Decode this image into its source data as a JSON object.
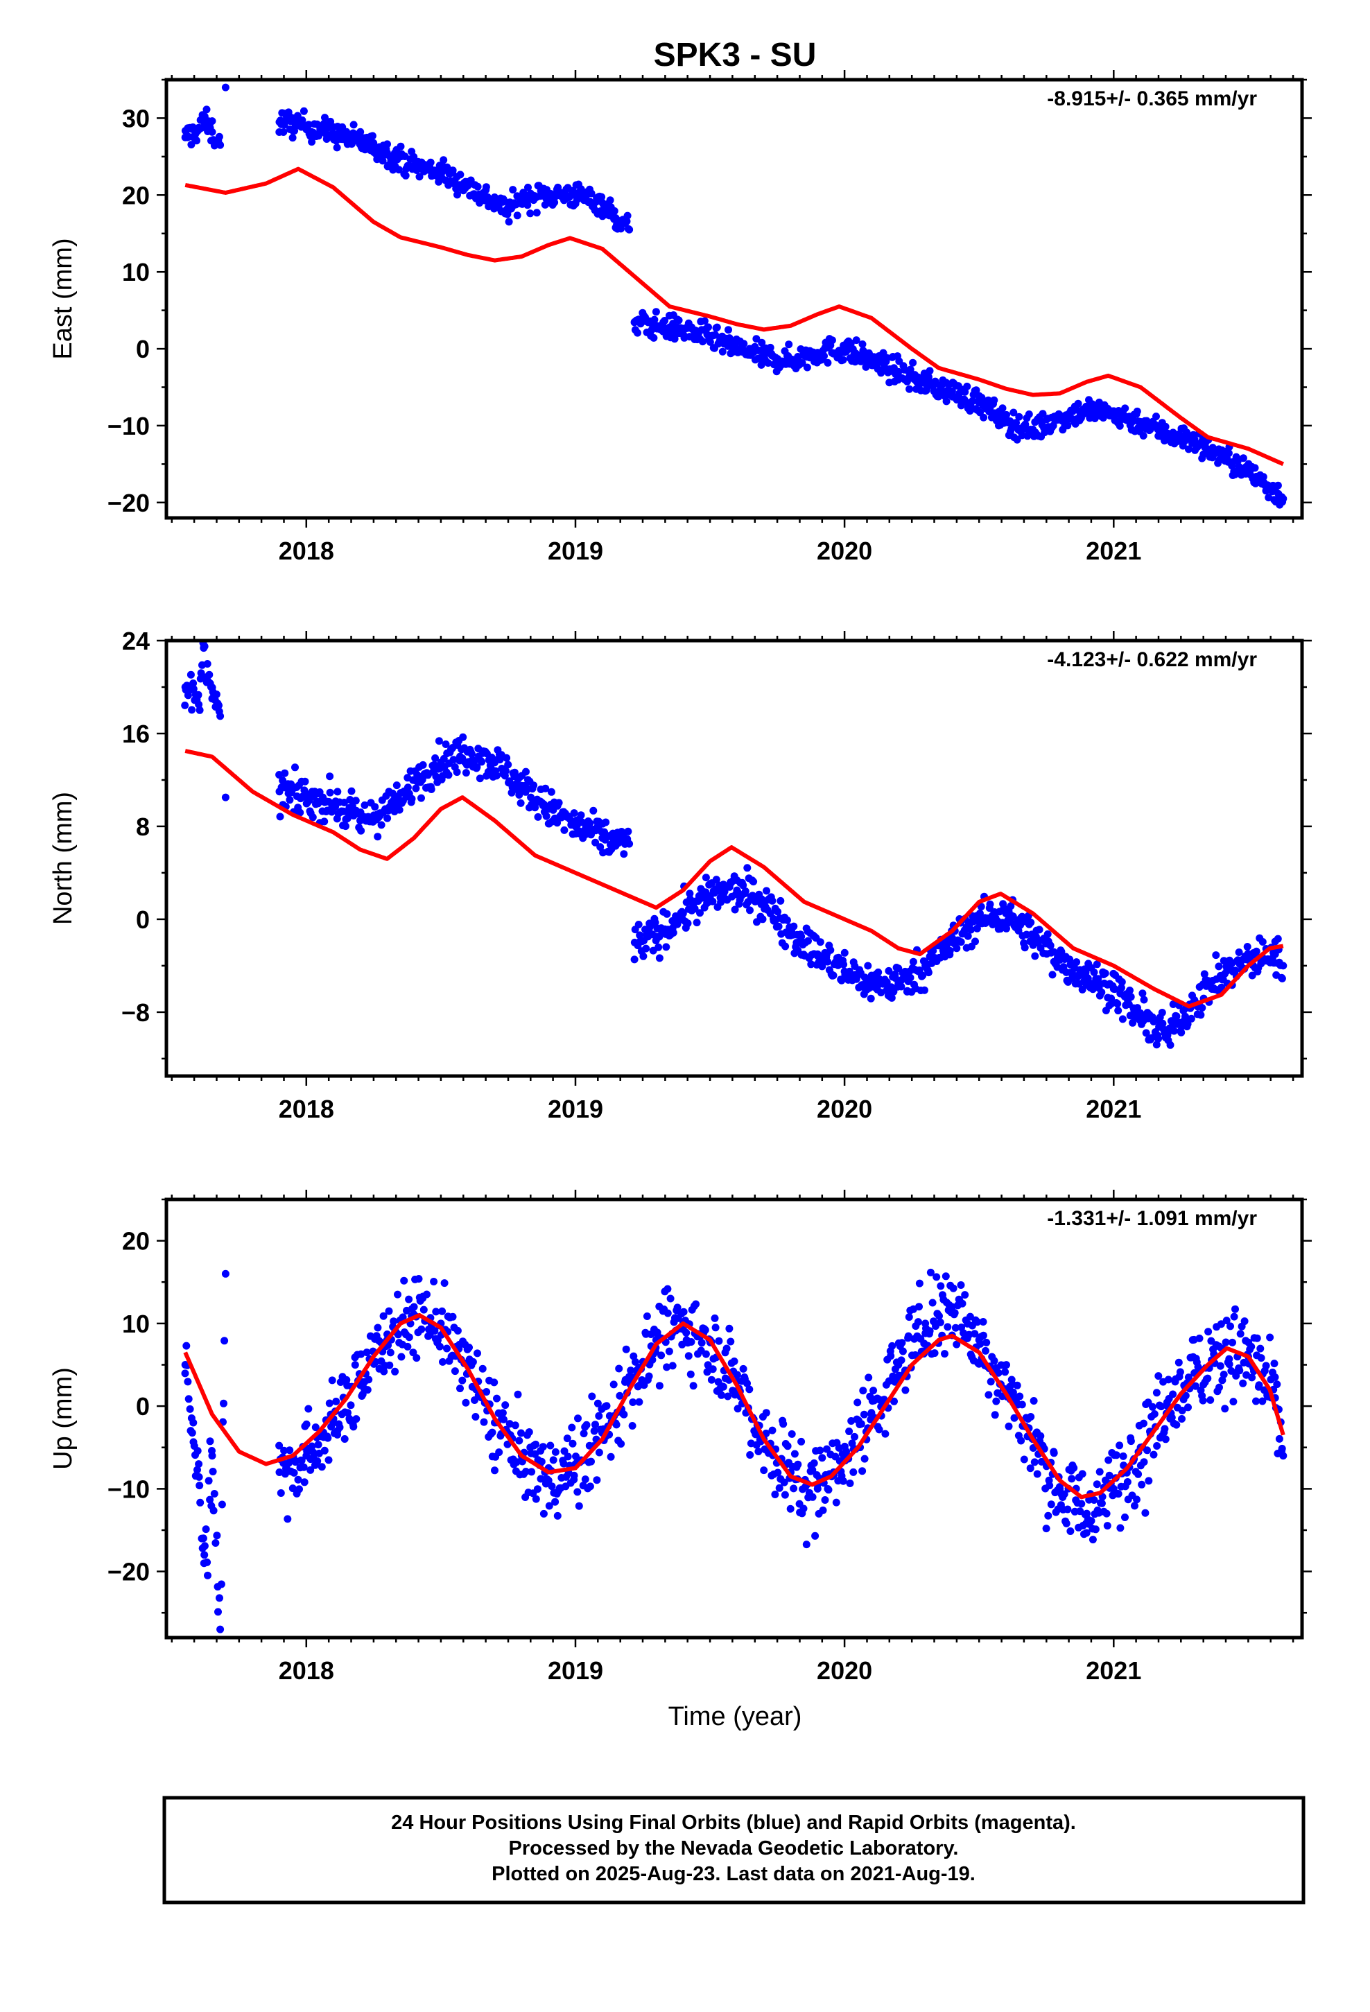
{
  "title": "SPK3 - SU",
  "xlabel": "Time (year)",
  "footer": {
    "line1": "24 Hour Positions Using Final Orbits (blue) and Rapid Orbits (magenta).",
    "line2": "Processed by the Nevada Geodetic Laboratory.",
    "line3": "Plotted on 2025-Aug-23. Last data on 2021-Aug-19."
  },
  "colors": {
    "data": "#0000ff",
    "model": "#ff0000",
    "frame": "#000000"
  },
  "chart_data": [
    {
      "type": "scatter",
      "ylabel": "East (mm)",
      "rate_text": "-8.915+/- 0.365 mm/yr",
      "xlim": [
        2017.48,
        2021.7
      ],
      "ylim": [
        -22,
        35
      ],
      "xticks": [
        2018,
        2019,
        2020,
        2021
      ],
      "yticks": [
        -20,
        -10,
        0,
        10,
        20,
        30
      ],
      "data_points": [
        [
          2017.55,
          27.5
        ],
        [
          2017.6,
          28.5
        ],
        [
          2017.62,
          29.8
        ],
        [
          2017.65,
          28.2
        ],
        [
          2017.68,
          26.5
        ],
        [
          2017.7,
          34.0
        ],
        [
          2017.9,
          29.5
        ],
        [
          2018.0,
          29.0
        ],
        [
          2018.1,
          28.0
        ],
        [
          2018.2,
          27.0
        ],
        [
          2018.3,
          25.5
        ],
        [
          2018.4,
          23.8
        ],
        [
          2018.5,
          23.0
        ],
        [
          2018.6,
          21.2
        ],
        [
          2018.7,
          19.0
        ],
        [
          2018.75,
          18.0
        ],
        [
          2018.8,
          19.5
        ],
        [
          2018.9,
          20.0
        ],
        [
          2019.0,
          20.0
        ],
        [
          2019.1,
          19.0
        ],
        [
          2019.15,
          17.0
        ],
        [
          2019.2,
          15.5
        ],
        [
          2019.22,
          3.5
        ],
        [
          2019.3,
          3.0
        ],
        [
          2019.4,
          2.5
        ],
        [
          2019.5,
          1.5
        ],
        [
          2019.6,
          0.0
        ],
        [
          2019.7,
          -1.0
        ],
        [
          2019.8,
          -1.5
        ],
        [
          2019.9,
          -0.5
        ],
        [
          2020.0,
          0.0
        ],
        [
          2020.1,
          -1.5
        ],
        [
          2020.2,
          -3.0
        ],
        [
          2020.3,
          -4.5
        ],
        [
          2020.4,
          -5.5
        ],
        [
          2020.5,
          -7.0
        ],
        [
          2020.6,
          -9.5
        ],
        [
          2020.7,
          -10.5
        ],
        [
          2020.8,
          -9.0
        ],
        [
          2020.9,
          -8.0
        ],
        [
          2021.0,
          -8.5
        ],
        [
          2021.1,
          -9.5
        ],
        [
          2021.2,
          -11.0
        ],
        [
          2021.3,
          -12.0
        ],
        [
          2021.4,
          -14.0
        ],
        [
          2021.5,
          -16.0
        ],
        [
          2021.6,
          -18.5
        ],
        [
          2021.63,
          -19.5
        ]
      ],
      "model_curve": [
        [
          2017.55,
          21.3
        ],
        [
          2017.7,
          20.3
        ],
        [
          2017.85,
          21.5
        ],
        [
          2017.97,
          23.4
        ],
        [
          2018.1,
          21.0
        ],
        [
          2018.25,
          16.5
        ],
        [
          2018.35,
          14.5
        ],
        [
          2018.5,
          13.2
        ],
        [
          2018.6,
          12.2
        ],
        [
          2018.7,
          11.5
        ],
        [
          2018.8,
          12.0
        ],
        [
          2018.9,
          13.5
        ],
        [
          2018.98,
          14.4
        ],
        [
          2019.1,
          13.0
        ],
        [
          2019.25,
          8.5
        ],
        [
          2019.35,
          5.5
        ],
        [
          2019.5,
          4.2
        ],
        [
          2019.6,
          3.2
        ],
        [
          2019.7,
          2.5
        ],
        [
          2019.8,
          3.0
        ],
        [
          2019.9,
          4.5
        ],
        [
          2019.98,
          5.5
        ],
        [
          2020.1,
          4.0
        ],
        [
          2020.25,
          0.0
        ],
        [
          2020.35,
          -2.5
        ],
        [
          2020.5,
          -4.0
        ],
        [
          2020.6,
          -5.2
        ],
        [
          2020.7,
          -6.0
        ],
        [
          2020.8,
          -5.8
        ],
        [
          2020.9,
          -4.3
        ],
        [
          2020.98,
          -3.5
        ],
        [
          2021.1,
          -5.0
        ],
        [
          2021.25,
          -9.0
        ],
        [
          2021.35,
          -11.5
        ],
        [
          2021.5,
          -13.0
        ],
        [
          2021.63,
          -15.0
        ]
      ]
    },
    {
      "type": "scatter",
      "ylabel": "North (mm)",
      "rate_text": "-4.123+/- 0.622 mm/yr",
      "xlim": [
        2017.48,
        2021.7
      ],
      "ylim": [
        -13.5,
        24
      ],
      "xticks": [
        2018,
        2019,
        2020,
        2021
      ],
      "yticks": [
        -8,
        0,
        8,
        16,
        24
      ],
      "data_points": [
        [
          2017.55,
          20.0
        ],
        [
          2017.6,
          18.5
        ],
        [
          2017.62,
          23.5
        ],
        [
          2017.65,
          19.0
        ],
        [
          2017.68,
          17.5
        ],
        [
          2017.7,
          10.5
        ],
        [
          2017.9,
          11.0
        ],
        [
          2018.0,
          10.5
        ],
        [
          2018.1,
          10.0
        ],
        [
          2018.2,
          8.5
        ],
        [
          2018.3,
          9.5
        ],
        [
          2018.35,
          10.0
        ],
        [
          2018.4,
          12.0
        ],
        [
          2018.5,
          13.5
        ],
        [
          2018.6,
          14.5
        ],
        [
          2018.7,
          13.5
        ],
        [
          2018.8,
          11.5
        ],
        [
          2018.9,
          9.5
        ],
        [
          2019.0,
          8.0
        ],
        [
          2019.1,
          7.0
        ],
        [
          2019.2,
          6.5
        ],
        [
          2019.22,
          -2.0
        ],
        [
          2019.3,
          -1.5
        ],
        [
          2019.4,
          0.5
        ],
        [
          2019.5,
          2.0
        ],
        [
          2019.6,
          2.5
        ],
        [
          2019.7,
          1.5
        ],
        [
          2019.8,
          -1.0
        ],
        [
          2019.9,
          -3.0
        ],
        [
          2020.0,
          -4.5
        ],
        [
          2020.1,
          -5.5
        ],
        [
          2020.2,
          -5.5
        ],
        [
          2020.3,
          -4.0
        ],
        [
          2020.4,
          -2.0
        ],
        [
          2020.5,
          0.0
        ],
        [
          2020.6,
          0.5
        ],
        [
          2020.7,
          -1.5
        ],
        [
          2020.8,
          -3.5
        ],
        [
          2020.9,
          -5.0
        ],
        [
          2021.0,
          -6.0
        ],
        [
          2021.1,
          -8.5
        ],
        [
          2021.2,
          -10.0
        ],
        [
          2021.3,
          -7.0
        ],
        [
          2021.4,
          -5.0
        ],
        [
          2021.5,
          -3.5
        ],
        [
          2021.6,
          -3.0
        ],
        [
          2021.63,
          -4.0
        ]
      ],
      "model_curve": [
        [
          2017.55,
          14.5
        ],
        [
          2017.65,
          14.0
        ],
        [
          2017.8,
          11.0
        ],
        [
          2017.95,
          9.0
        ],
        [
          2018.1,
          7.5
        ],
        [
          2018.2,
          6.0
        ],
        [
          2018.3,
          5.2
        ],
        [
          2018.4,
          7.0
        ],
        [
          2018.5,
          9.5
        ],
        [
          2018.58,
          10.5
        ],
        [
          2018.7,
          8.5
        ],
        [
          2018.85,
          5.5
        ],
        [
          2019.0,
          4.0
        ],
        [
          2019.15,
          2.5
        ],
        [
          2019.3,
          1.0
        ],
        [
          2019.4,
          2.5
        ],
        [
          2019.5,
          5.0
        ],
        [
          2019.58,
          6.2
        ],
        [
          2019.7,
          4.5
        ],
        [
          2019.85,
          1.5
        ],
        [
          2020.0,
          0.0
        ],
        [
          2020.1,
          -1.0
        ],
        [
          2020.2,
          -2.5
        ],
        [
          2020.28,
          -3.0
        ],
        [
          2020.4,
          -1.0
        ],
        [
          2020.5,
          1.5
        ],
        [
          2020.58,
          2.2
        ],
        [
          2020.7,
          0.5
        ],
        [
          2020.85,
          -2.5
        ],
        [
          2021.0,
          -4.0
        ],
        [
          2021.15,
          -6.0
        ],
        [
          2021.28,
          -7.5
        ],
        [
          2021.4,
          -6.5
        ],
        [
          2021.5,
          -4.0
        ],
        [
          2021.58,
          -2.5
        ],
        [
          2021.63,
          -2.3
        ]
      ]
    },
    {
      "type": "scatter",
      "ylabel": "Up (mm)",
      "rate_text": "-1.331+/- 1.091 mm/yr",
      "xlim": [
        2017.48,
        2021.7
      ],
      "ylim": [
        -28,
        25
      ],
      "xticks": [
        2018,
        2019,
        2020,
        2021
      ],
      "yticks": [
        -20,
        -10,
        0,
        10,
        20
      ],
      "data_points": [
        [
          2017.55,
          5.0
        ],
        [
          2017.58,
          -2.0
        ],
        [
          2017.6,
          -7.0
        ],
        [
          2017.62,
          -19.0
        ],
        [
          2017.65,
          -6.0
        ],
        [
          2017.68,
          -27.0
        ],
        [
          2017.7,
          16.0
        ],
        [
          2017.9,
          -8.0
        ],
        [
          2018.0,
          -6.0
        ],
        [
          2018.1,
          -2.0
        ],
        [
          2018.2,
          3.0
        ],
        [
          2018.3,
          8.0
        ],
        [
          2018.4,
          12.0
        ],
        [
          2018.5,
          10.0
        ],
        [
          2018.6,
          4.0
        ],
        [
          2018.7,
          -2.0
        ],
        [
          2018.8,
          -6.0
        ],
        [
          2018.9,
          -9.0
        ],
        [
          2019.0,
          -7.0
        ],
        [
          2019.1,
          -3.0
        ],
        [
          2019.2,
          3.0
        ],
        [
          2019.3,
          8.0
        ],
        [
          2019.4,
          10.0
        ],
        [
          2019.5,
          8.0
        ],
        [
          2019.6,
          3.0
        ],
        [
          2019.7,
          -4.0
        ],
        [
          2019.8,
          -8.0
        ],
        [
          2019.9,
          -10.0
        ],
        [
          2020.0,
          -6.0
        ],
        [
          2020.1,
          -1.0
        ],
        [
          2020.2,
          5.0
        ],
        [
          2020.3,
          10.0
        ],
        [
          2020.4,
          12.0
        ],
        [
          2020.5,
          8.0
        ],
        [
          2020.6,
          2.0
        ],
        [
          2020.7,
          -4.0
        ],
        [
          2020.8,
          -10.0
        ],
        [
          2020.9,
          -13.0
        ],
        [
          2021.0,
          -10.0
        ],
        [
          2021.1,
          -5.0
        ],
        [
          2021.2,
          0.0
        ],
        [
          2021.3,
          4.0
        ],
        [
          2021.4,
          7.0
        ],
        [
          2021.5,
          6.0
        ],
        [
          2021.6,
          1.0
        ],
        [
          2021.63,
          -6.0
        ]
      ],
      "model_curve": [
        [
          2017.55,
          6.5
        ],
        [
          2017.65,
          -1.0
        ],
        [
          2017.75,
          -5.5
        ],
        [
          2017.85,
          -7.0
        ],
        [
          2017.95,
          -6.0
        ],
        [
          2018.05,
          -3.0
        ],
        [
          2018.15,
          1.0
        ],
        [
          2018.25,
          6.0
        ],
        [
          2018.35,
          10.0
        ],
        [
          2018.42,
          11.0
        ],
        [
          2018.5,
          9.5
        ],
        [
          2018.6,
          4.5
        ],
        [
          2018.7,
          -1.5
        ],
        [
          2018.8,
          -6.0
        ],
        [
          2018.9,
          -8.0
        ],
        [
          2019.0,
          -7.5
        ],
        [
          2019.1,
          -4.0
        ],
        [
          2019.2,
          2.0
        ],
        [
          2019.3,
          7.5
        ],
        [
          2019.4,
          10.0
        ],
        [
          2019.5,
          8.0
        ],
        [
          2019.6,
          2.5
        ],
        [
          2019.7,
          -4.0
        ],
        [
          2019.8,
          -8.5
        ],
        [
          2019.88,
          -9.5
        ],
        [
          2019.95,
          -8.5
        ],
        [
          2020.05,
          -5.0
        ],
        [
          2020.15,
          0.0
        ],
        [
          2020.25,
          5.0
        ],
        [
          2020.35,
          8.0
        ],
        [
          2020.4,
          8.5
        ],
        [
          2020.5,
          6.5
        ],
        [
          2020.6,
          1.5
        ],
        [
          2020.7,
          -4.0
        ],
        [
          2020.8,
          -9.0
        ],
        [
          2020.88,
          -11.0
        ],
        [
          2020.95,
          -10.5
        ],
        [
          2021.05,
          -7.5
        ],
        [
          2021.15,
          -3.0
        ],
        [
          2021.25,
          1.5
        ],
        [
          2021.35,
          5.0
        ],
        [
          2021.42,
          7.0
        ],
        [
          2021.5,
          6.0
        ],
        [
          2021.58,
          2.0
        ],
        [
          2021.63,
          -3.5
        ]
      ]
    }
  ]
}
